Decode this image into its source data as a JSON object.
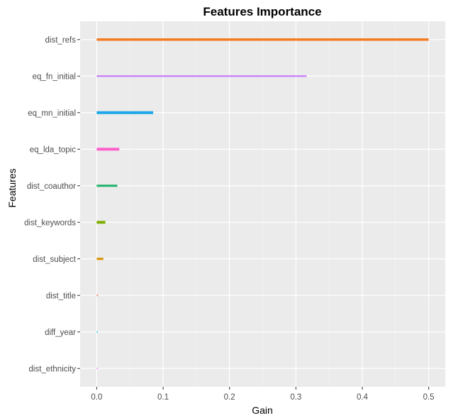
{
  "chart_data": {
    "type": "bar",
    "orientation": "horizontal",
    "title": "Features Importance",
    "xlabel": "Gain",
    "ylabel": "Features",
    "xlim": [
      -0.025,
      0.525
    ],
    "x_ticks": [
      0.0,
      0.1,
      0.2,
      0.3,
      0.4,
      0.5
    ],
    "x_tick_labels": [
      "0.0",
      "0.1",
      "0.2",
      "0.3",
      "0.4",
      "0.5"
    ],
    "grid": true,
    "legend": "none",
    "categories": [
      "dist_refs",
      "eq_fn_initial",
      "eq_mn_initial",
      "eq_lda_topic",
      "dist_coauthor",
      "dist_keywords",
      "dist_subject",
      "dist_title",
      "diff_year",
      "dist_ethnicity"
    ],
    "values": [
      0.5,
      0.316,
      0.085,
      0.034,
      0.031,
      0.013,
      0.01,
      0.002,
      0.001,
      0.001
    ],
    "colors": [
      "#f8766d",
      "#d89000",
      "#a3a500",
      "#39b600",
      "#00bf7d",
      "#00bfc4",
      "#00b0f6",
      "#9590ff",
      "#e76bf3",
      "#ff62bc"
    ],
    "bar_colors": [
      "#f47c20",
      "#c77cff",
      "#1aa6e8",
      "#ff61cc",
      "#1fb36a",
      "#7cae00",
      "#d89000",
      "#f8766d",
      "#00bfc4",
      "#e76bf3"
    ]
  }
}
